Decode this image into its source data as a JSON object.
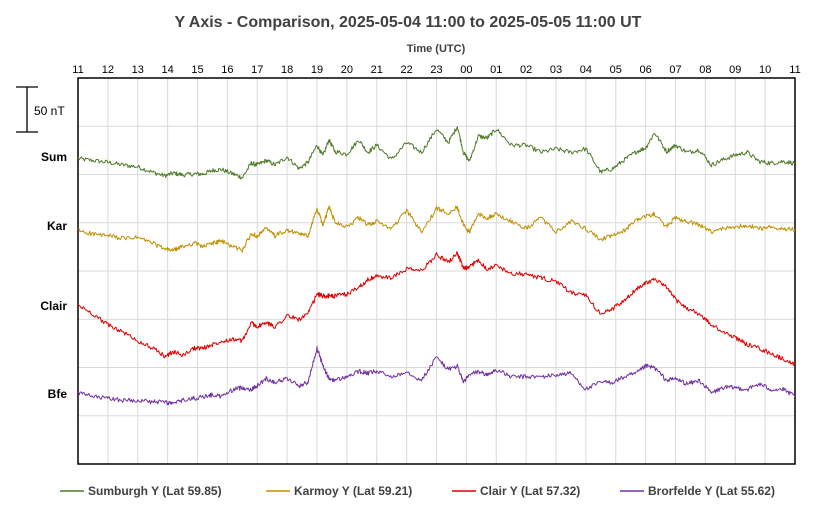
{
  "chart_data": {
    "type": "line",
    "title": "Y Axis - Comparison,  2025-05-04 11:00 to 2025-05-05 11:00 UT",
    "xlabel": "Time (UTC)",
    "x_ticks": [
      "11",
      "12",
      "13",
      "14",
      "15",
      "16",
      "17",
      "18",
      "19",
      "20",
      "21",
      "22",
      "23",
      "00",
      "01",
      "02",
      "03",
      "04",
      "05",
      "06",
      "07",
      "08",
      "09",
      "10",
      "11"
    ],
    "scale_bar_label": "50 nT",
    "row_labels": [
      "Sum",
      "Kar",
      "Clair",
      "Bfe"
    ],
    "grid": true,
    "legend_position": "bottom",
    "x_unit": "hours since 2025-05-04 11:00 UT",
    "series": [
      {
        "name": "Sumburgh Y (Lat 59.85)",
        "short": "Sum",
        "color": "#4f7a28",
        "x": [
          0,
          0.5,
          1,
          1.5,
          2,
          2.5,
          2.9,
          3.2,
          3.5,
          3.9,
          4.2,
          4.5,
          4.8,
          5.2,
          5.5,
          5.8,
          6,
          6.3,
          6.6,
          7,
          7.4,
          7.7,
          8,
          8.2,
          8.4,
          8.6,
          9,
          9.4,
          9.7,
          10,
          10.5,
          11,
          11.5,
          12,
          12.4,
          12.7,
          12.9,
          13.1,
          13.4,
          13.7,
          14,
          14.5,
          15,
          15.5,
          16,
          16.5,
          17,
          17.5,
          17.9,
          18.3,
          18.7,
          19,
          19.3,
          19.7,
          20,
          20.4,
          20.8,
          21.2,
          21.6,
          22,
          22.4,
          22.8,
          23.2,
          23.6,
          24
        ],
        "y": [
          -3,
          -5,
          -7,
          -10,
          -12,
          -18,
          -22,
          -19,
          -21,
          -20,
          -20,
          -16,
          -15,
          -20,
          -24,
          -8,
          -10,
          -5,
          -10,
          -1,
          -14,
          -7,
          12,
          0,
          18,
          5,
          2,
          18,
          4,
          12,
          -4,
          15,
          4,
          30,
          15,
          33,
          4,
          -6,
          22,
          20,
          30,
          12,
          12,
          4,
          8,
          4,
          8,
          -18,
          -14,
          -4,
          5,
          9,
          26,
          5,
          12,
          4,
          7,
          -10,
          -4,
          1,
          4,
          -6,
          -8,
          -6,
          -8
        ]
      },
      {
        "name": "Karmoy Y (Lat 59.21)",
        "short": "Kar",
        "color": "#bf9000",
        "x": [
          0,
          0.5,
          1,
          1.5,
          2,
          2.5,
          2.9,
          3.2,
          3.5,
          3.9,
          4.2,
          4.5,
          4.8,
          5.2,
          5.5,
          5.8,
          6,
          6.3,
          6.6,
          7,
          7.4,
          7.7,
          8,
          8.2,
          8.4,
          8.6,
          9,
          9.4,
          9.7,
          10,
          10.5,
          11,
          11.5,
          12,
          12.4,
          12.7,
          12.9,
          13.1,
          13.4,
          13.7,
          14,
          14.5,
          15,
          15.5,
          16,
          16.5,
          17,
          17.5,
          17.9,
          18.3,
          18.7,
          19,
          19.3,
          19.7,
          20,
          20.4,
          20.8,
          21.2,
          21.6,
          22,
          22.4,
          22.8,
          23.2,
          23.6,
          24
        ],
        "y": [
          -6,
          -10,
          -12,
          -15,
          -14,
          -20,
          -27,
          -28,
          -24,
          -20,
          -24,
          -20,
          -18,
          -24,
          -28,
          -10,
          -12,
          -4,
          -12,
          -6,
          -10,
          -12,
          18,
          0,
          20,
          4,
          -2,
          8,
          0,
          4,
          -4,
          16,
          -8,
          18,
          14,
          20,
          0,
          -8,
          12,
          8,
          12,
          4,
          -4,
          8,
          -8,
          4,
          -4,
          -16,
          -12,
          -6,
          6,
          10,
          12,
          -2,
          8,
          4,
          0,
          -8,
          -4,
          -2,
          0,
          -4,
          -2,
          -4,
          -5
        ]
      },
      {
        "name": "Clair Y (Lat 57.32)",
        "short": "Clair",
        "color": "#e00000",
        "x": [
          0,
          0.5,
          1,
          1.5,
          2,
          2.5,
          2.9,
          3.2,
          3.5,
          3.9,
          4.2,
          4.5,
          4.8,
          5.2,
          5.5,
          5.8,
          6,
          6.3,
          6.6,
          7,
          7.4,
          7.7,
          8,
          8.2,
          8.4,
          8.6,
          9,
          9.4,
          9.7,
          10,
          10.5,
          11,
          11.5,
          12,
          12.4,
          12.7,
          12.9,
          13.1,
          13.4,
          13.7,
          14,
          14.5,
          15,
          15.5,
          16,
          16.5,
          17,
          17.5,
          17.9,
          18.3,
          18.7,
          19,
          19.3,
          19.7,
          20,
          20.4,
          20.8,
          21.2,
          21.6,
          22,
          22.4,
          22.8,
          23.2,
          23.6,
          24
        ],
        "y": [
          0,
          -10,
          -22,
          -30,
          -40,
          -48,
          -57,
          -52,
          -56,
          -48,
          -48,
          -44,
          -40,
          -38,
          -40,
          -20,
          -24,
          -20,
          -24,
          -12,
          -16,
          -10,
          12,
          10,
          10,
          10,
          12,
          20,
          28,
          32,
          30,
          40,
          38,
          56,
          48,
          58,
          40,
          42,
          50,
          40,
          44,
          35,
          34,
          30,
          26,
          14,
          10,
          -10,
          -4,
          5,
          18,
          25,
          28,
          20,
          6,
          -4,
          -10,
          -22,
          -30,
          -36,
          -44,
          -48,
          -54,
          -60,
          -66
        ]
      },
      {
        "name": "Brorfelde Y (Lat 55.62)",
        "short": "Bfe",
        "color": "#7030a0",
        "x": [
          0,
          0.5,
          1,
          1.5,
          2,
          2.5,
          2.9,
          3.2,
          3.5,
          3.9,
          4.2,
          4.5,
          4.8,
          5.2,
          5.5,
          5.8,
          6,
          6.3,
          6.6,
          7,
          7.4,
          7.7,
          8,
          8.2,
          8.4,
          8.6,
          9,
          9.4,
          9.7,
          10,
          10.5,
          11,
          11.5,
          12,
          12.4,
          12.7,
          12.9,
          13.1,
          13.4,
          13.7,
          14,
          14.5,
          15,
          15.5,
          16,
          16.5,
          17,
          17.5,
          17.9,
          18.3,
          18.7,
          19,
          19.3,
          19.7,
          20,
          20.4,
          20.8,
          21.2,
          21.6,
          22,
          22.4,
          22.8,
          23.2,
          23.6,
          24
        ],
        "y": [
          0,
          -4,
          -6,
          -8,
          -8,
          -10,
          -10,
          -12,
          -8,
          -6,
          -4,
          -2,
          -4,
          4,
          6,
          4,
          8,
          16,
          12,
          16,
          8,
          12,
          50,
          30,
          16,
          14,
          18,
          24,
          22,
          24,
          18,
          24,
          14,
          40,
          26,
          30,
          12,
          20,
          24,
          20,
          26,
          18,
          18,
          18,
          20,
          22,
          4,
          12,
          12,
          18,
          22,
          30,
          28,
          14,
          16,
          10,
          14,
          0,
          6,
          6,
          4,
          10,
          4,
          4,
          -4
        ]
      }
    ]
  }
}
